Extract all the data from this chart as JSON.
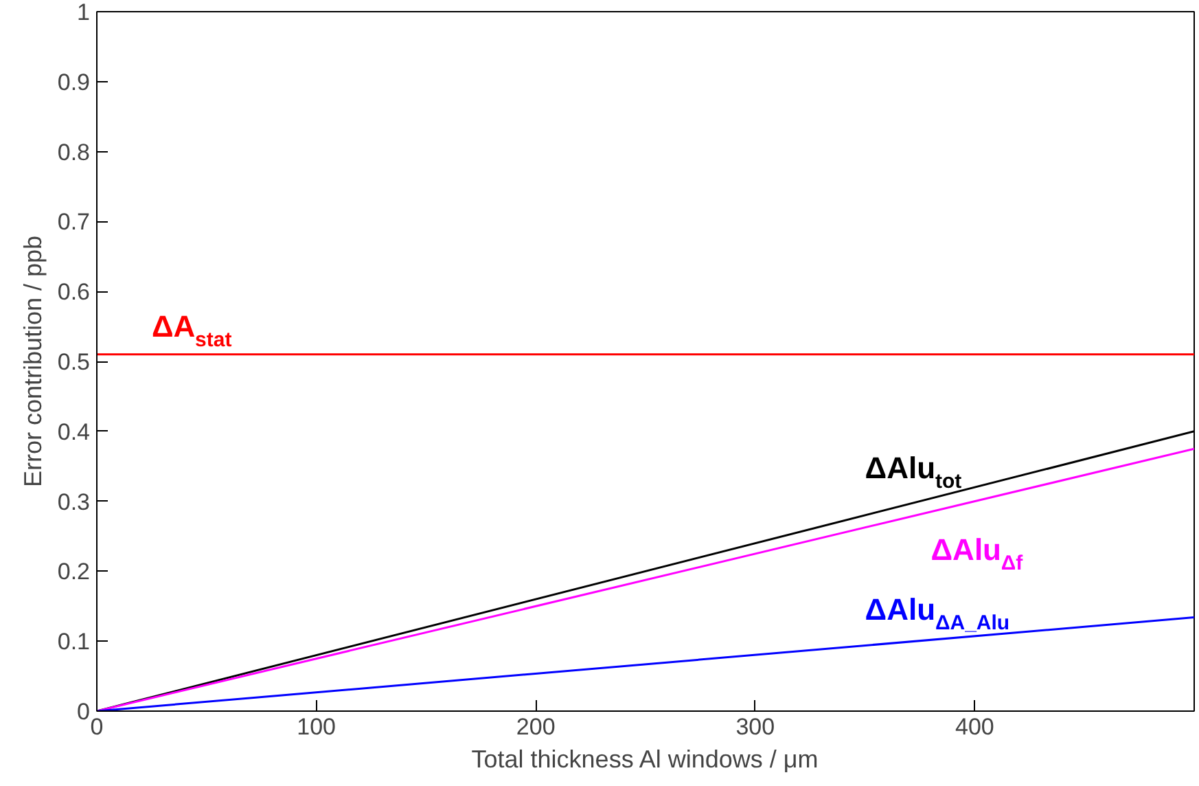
{
  "chart_data": {
    "type": "line",
    "xlabel": "Total thickness Al windows / μm",
    "ylabel": "Error contribution / ppb",
    "xlim": [
      0,
      500
    ],
    "ylim": [
      0,
      1
    ],
    "xticks": [
      0,
      100,
      200,
      300,
      400
    ],
    "yticks": [
      0,
      0.1,
      0.2,
      0.3,
      0.4,
      0.5,
      0.6,
      0.7,
      0.8,
      0.9,
      1
    ],
    "x": [
      0,
      500
    ],
    "grid": false,
    "legend": false,
    "marker": "none",
    "line_style": "solid",
    "series": [
      {
        "name": "ΔA$_{stat}$",
        "color": "#ff0000",
        "values": [
          0.51,
          0.51
        ]
      },
      {
        "name": "ΔAlu$_{tot}$",
        "color": "#000000",
        "values": [
          0,
          0.4
        ]
      },
      {
        "name": "ΔAlu$_{Δf}$",
        "color": "#ff00ff",
        "values": [
          0,
          0.375
        ]
      },
      {
        "name": "ΔAlu$_{ΔA_Alu}$",
        "color": "#0000ff",
        "values": [
          0,
          0.134
        ]
      }
    ]
  }
}
